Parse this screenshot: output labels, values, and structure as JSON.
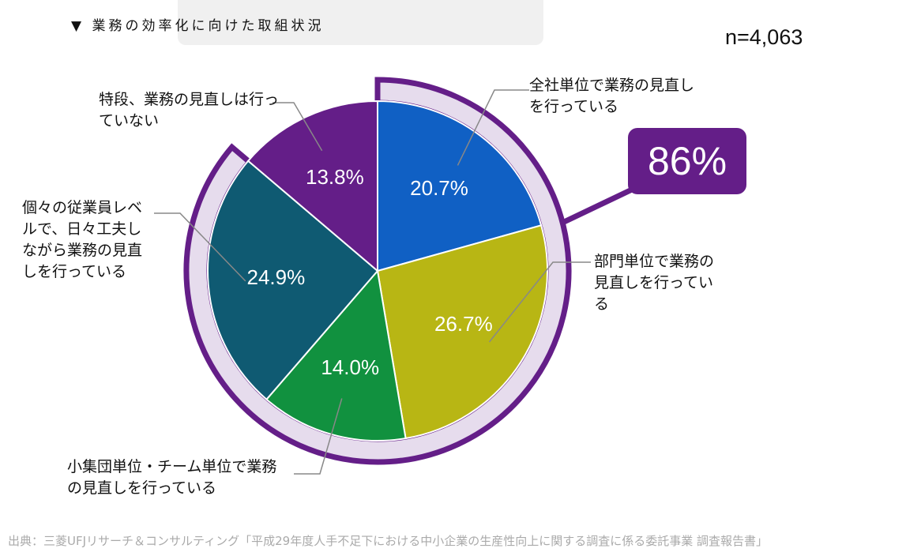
{
  "chart_data": {
    "type": "pie",
    "title": "▼ 業務の効率化に向けた取組状況",
    "subtitle": "n=4,063",
    "annotation": "86%",
    "source": "出典：三菱UFJリサーチ＆コンサルティング「平成29年度人手不足下における中小企業の生産性向上に関する調査に係る委託事業 調査報告書」",
    "categories": [
      "全社単位で業務の見直しを行っている",
      "部門単位で業務の見直しを行っている",
      "小集団単位・チーム単位で業務の見直しを行っている",
      "個々の従業員レベルで、日々工夫しながら業務の見直しを行っている",
      "特段、業務の見直しは行っていない"
    ],
    "values": [
      20.7,
      26.7,
      14.0,
      24.9,
      13.8
    ],
    "value_labels": [
      "20.7%",
      "26.7%",
      "14.0%",
      "24.9%",
      "13.8%"
    ],
    "colors": [
      "#1060c4",
      "#b8b614",
      "#11913f",
      "#0f5a72",
      "#641e88"
    ]
  }
}
